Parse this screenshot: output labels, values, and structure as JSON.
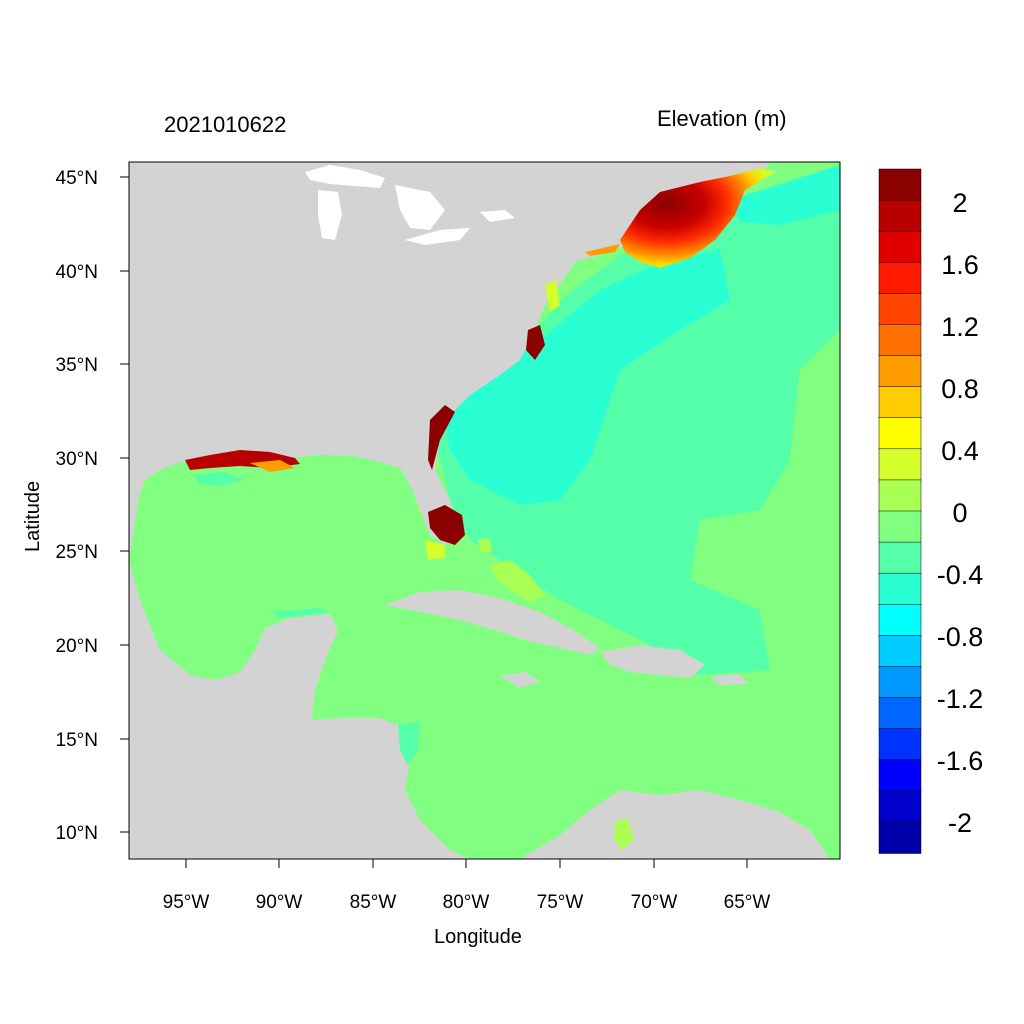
{
  "header": {
    "timestamp": "2021010622",
    "variable": "Elevation (m)"
  },
  "axes": {
    "x_title": "Longitude",
    "y_title": "Latitude",
    "x_ticks": [
      "95°W",
      "90°W",
      "85°W",
      "80°W",
      "75°W",
      "70°W",
      "65°W"
    ],
    "y_ticks": [
      "45°N",
      "40°N",
      "35°N",
      "30°N",
      "25°N",
      "20°N",
      "15°N",
      "10°N"
    ]
  },
  "colorbar": {
    "labels": [
      "2",
      "1.6",
      "1.2",
      "0.8",
      "0.4",
      "0",
      "-0.4",
      "-0.8",
      "-1.2",
      "-1.6",
      "-2"
    ],
    "colors": [
      "#8b0000",
      "#b80000",
      "#e00000",
      "#ff1a00",
      "#ff4500",
      "#ff7000",
      "#ff9c00",
      "#ffcc00",
      "#ffff00",
      "#d4ff2a",
      "#aaff55",
      "#80ff80",
      "#55ffaa",
      "#2affd4",
      "#00ffff",
      "#00ccff",
      "#0099ff",
      "#0066ff",
      "#0033ff",
      "#0000ff",
      "#0000cc",
      "#0000aa"
    ]
  },
  "colors": {
    "land": "#d3d3d3",
    "ocean": "#80ff80",
    "lake": "#ffffff"
  }
}
